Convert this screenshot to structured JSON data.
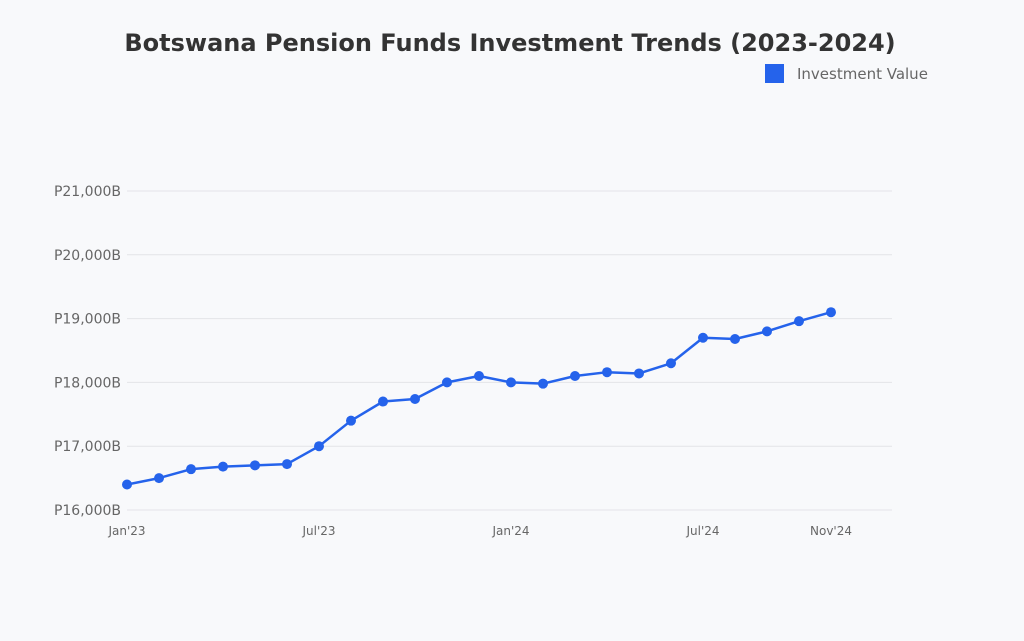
{
  "chart_data": {
    "type": "line",
    "title": "Botswana Pension Funds Investment Trends (2023-2024)",
    "xlabel": "",
    "ylabel": "",
    "x_tick_labels": [
      "Jan'23",
      "Jul'23",
      "Jan'24",
      "Jul'24",
      "Nov'24"
    ],
    "y_tick_labels": [
      "P16,000B",
      "P17,000B",
      "P18,000B",
      "P19,000B",
      "P20,000B",
      "P21,000B"
    ],
    "y_ticks": [
      16000,
      17000,
      18000,
      19000,
      20000,
      21000
    ],
    "ylim": [
      16000,
      21000
    ],
    "grid": true,
    "legend_position": "top-right",
    "x": [
      "2023-01",
      "2023-02",
      "2023-03",
      "2023-04",
      "2023-05",
      "2023-06",
      "2023-07",
      "2023-08",
      "2023-09",
      "2023-10",
      "2023-11",
      "2023-12",
      "2024-01",
      "2024-02",
      "2024-03",
      "2024-04",
      "2024-05",
      "2024-06",
      "2024-07",
      "2024-08",
      "2024-09",
      "2024-10",
      "2024-11"
    ],
    "series": [
      {
        "name": "Investment Value",
        "color": "#2563eb",
        "values": [
          16400,
          16500,
          16640,
          16680,
          16700,
          16720,
          17000,
          17400,
          17700,
          17740,
          18000,
          18100,
          18000,
          17980,
          18100,
          18160,
          18140,
          18300,
          18700,
          18680,
          18800,
          18960,
          19100
        ]
      }
    ]
  }
}
